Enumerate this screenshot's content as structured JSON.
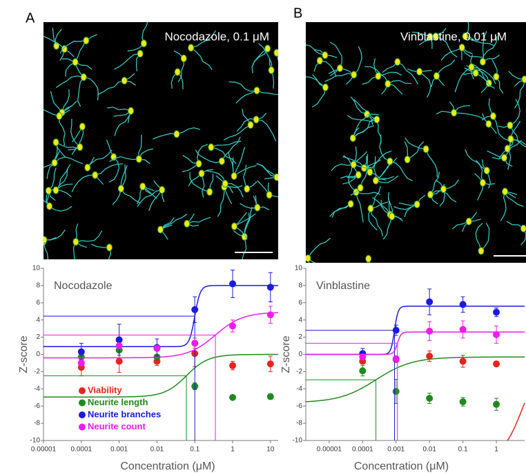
{
  "panels": [
    {
      "letter": "A",
      "image_label": "Nocodazole, 0.1  μM"
    },
    {
      "letter": "B",
      "image_label": "Vinblastine, 0.01 μM"
    }
  ],
  "chart_data": [
    {
      "type": "scatter",
      "title": "Nocodazole",
      "x_label": "Concentration (μM)",
      "y_label": "Z-score",
      "log_x": true,
      "legend": "lower left",
      "x": [
        0.0001,
        0.001,
        0.01,
        0.1,
        1,
        10
      ],
      "xlim": [
        1e-05,
        16
      ],
      "xticks": [
        1e-05,
        0.0001,
        0.001,
        0.01,
        0.1,
        1,
        10
      ],
      "ylim": [
        -10,
        10
      ],
      "yticks": [
        -10,
        -8,
        -6,
        -4,
        -2,
        0,
        2,
        4,
        6,
        8,
        10
      ],
      "series": [
        {
          "name": "Viability",
          "color": "#e8231f",
          "values": [
            -1.5,
            -0.8,
            -0.8,
            0.1,
            -1.3,
            -1.1
          ],
          "errors": [
            1.0,
            1.3,
            0.5,
            1.5,
            0.5,
            0.9
          ]
        },
        {
          "name": "Neurite length",
          "color": "#1e8a1e",
          "values": [
            -0.3,
            0.5,
            -0.3,
            -3.7,
            -5.0,
            -4.9
          ],
          "errors": [
            0.3,
            0.3,
            0.3,
            0.4,
            0.2,
            0.3
          ],
          "fit": {
            "bottom": -4.95,
            "top": 0,
            "ec50": 0.06,
            "hill": 1.5
          },
          "ec50_guide": true
        },
        {
          "name": "Neurite branches",
          "color": "#1a1ae0",
          "values": [
            0.3,
            1.7,
            0.8,
            5.2,
            8.2,
            7.8
          ],
          "errors": [
            1.0,
            1.8,
            1.0,
            1.5,
            1.6,
            1.7
          ],
          "fit": {
            "bottom": 0.9,
            "top": 8,
            "ec50": 0.1,
            "hill": 6
          },
          "ec50_guide": true
        },
        {
          "name": "Neurite count",
          "color": "#ee1aee",
          "values": [
            -1.0,
            1.0,
            0.7,
            1.3,
            3.3,
            4.6
          ],
          "errors": [
            0.3,
            0.3,
            0.3,
            0.6,
            0.7,
            1.0
          ],
          "fit": {
            "bottom": -0.4,
            "top": 4.9,
            "ec50": 0.35,
            "hill": 1.2
          },
          "ec50_guide": true
        }
      ]
    },
    {
      "type": "scatter",
      "title": "Vinblastine",
      "x_label": "Concentration (μM)",
      "y_label": "Z-score",
      "log_x": true,
      "x": [
        0.0001,
        0.001,
        0.01,
        0.1,
        1
      ],
      "xlim": [
        2e-06,
        7
      ],
      "xticks": [
        1e-05,
        0.0001,
        0.001,
        0.01,
        0.1,
        1
      ],
      "ylim": [
        -10,
        10
      ],
      "yticks": [
        -10,
        -8,
        -6,
        -4,
        -2,
        0,
        2,
        4,
        6,
        8,
        10
      ],
      "series": [
        {
          "color": "#e8231f",
          "values": [
            -0.8,
            -0.6,
            -0.2,
            -0.8,
            -1.1
          ],
          "errors": [
            0.3,
            0.3,
            0.6,
            0.7,
            0.3
          ],
          "fit": {
            "bottom": -12,
            "top": -0.6,
            "ec50": 6,
            "hill": 1.5
          },
          "ec50_guide": false
        },
        {
          "color": "#1e8a1e",
          "values": [
            -1.9,
            -4.3,
            -5.1,
            -5.5,
            -5.8
          ],
          "errors": [
            0.6,
            1.4,
            0.6,
            0.5,
            0.7
          ],
          "fit": {
            "bottom": -5.6,
            "top": -0.3,
            "ec50": 0.00025,
            "hill": 0.8
          },
          "ec50_guide": true
        },
        {
          "color": "#1a1ae0",
          "values": [
            0.1,
            2.8,
            6.1,
            5.8,
            4.9
          ],
          "errors": [
            0.6,
            0.6,
            1.5,
            0.9,
            0.5
          ],
          "fit": {
            "bottom": 0,
            "top": 5.6,
            "ec50": 0.0009,
            "hill": 8
          },
          "ec50_guide": true
        },
        {
          "color": "#ee1aee",
          "values": [
            -0.3,
            -0.5,
            2.7,
            2.9,
            2.3
          ],
          "errors": [
            0.3,
            0.3,
            1.1,
            1.0,
            1.0
          ],
          "fit": {
            "bottom": 0,
            "top": 2.6,
            "ec50": 0.0011,
            "hill": 8
          },
          "ec50_guide": true
        }
      ]
    }
  ]
}
